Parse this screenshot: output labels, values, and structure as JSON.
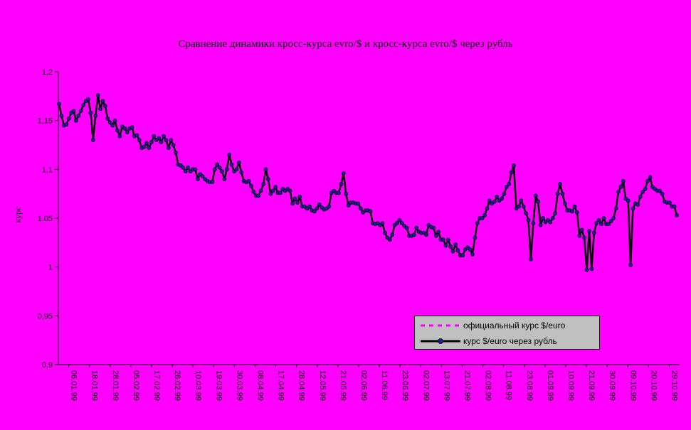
{
  "chart_data": {
    "type": "line",
    "title": "Сравнение динамики кросс-курса evro/$ и кросс-курса evro/$ через рубль",
    "ylabel": "курс",
    "xlabel": "",
    "ylim": [
      0.9,
      1.2
    ],
    "yticks": [
      "1,2",
      "1,15",
      "1,1",
      "1,05",
      "1",
      "0,95",
      "0,9"
    ],
    "xticks": [
      "06.01.99",
      "18.01.99",
      "28.01.99",
      "05.02.99",
      "17.02.99",
      "26.02.99",
      "10.03.99",
      "19.03.99",
      "30.03.99",
      "08.04.99",
      "17.04.99",
      "28.04.99",
      "12.05.99",
      "21.05.99",
      "02.06.99",
      "11.06.99",
      "23.06.99",
      "02.07.99",
      "13.07.99",
      "21.07.99",
      "02.08.99",
      "11.08.99",
      "23.08.99",
      "01.09.99",
      "10.09.99",
      "21.09.99",
      "30.09.99",
      "09.10.99",
      "20.10.99",
      "29.10.99"
    ],
    "grid": false,
    "legend_position": "bottom-right",
    "colors": {
      "official": "#ff00ff",
      "via_ruble": "#000000",
      "marker": "#1c1c8c"
    },
    "series": [
      {
        "name": "официальный курс $/euro",
        "style": "dashed",
        "values": [
          1.167,
          1.155,
          1.145,
          1.146,
          1.152,
          1.158,
          1.16,
          1.15,
          1.155,
          1.16,
          1.166,
          1.17,
          1.172,
          1.158,
          1.13,
          1.155,
          1.176,
          1.162,
          1.17,
          1.165,
          1.152,
          1.148,
          1.145,
          1.15,
          1.14,
          1.134,
          1.144,
          1.142,
          1.138,
          1.142,
          1.143,
          1.134,
          1.135,
          1.13,
          1.122,
          1.123,
          1.127,
          1.122,
          1.128,
          1.134,
          1.13,
          1.132,
          1.128,
          1.134,
          1.13,
          1.122,
          1.13,
          1.125,
          1.117,
          1.105,
          1.104,
          1.102,
          1.098,
          1.102,
          1.098,
          1.1,
          1.1,
          1.09,
          1.095,
          1.093,
          1.09,
          1.088,
          1.087,
          1.087,
          1.1,
          1.105,
          1.102,
          1.098,
          1.09,
          1.1,
          1.115,
          1.105,
          1.098,
          1.1,
          1.107,
          1.097,
          1.088,
          1.087,
          1.088,
          1.083,
          1.077,
          1.073,
          1.073,
          1.078,
          1.085,
          1.1,
          1.09,
          1.075,
          1.078,
          1.082,
          1.076,
          1.076,
          1.08,
          1.078,
          1.08,
          1.078,
          1.065,
          1.07,
          1.066,
          1.072,
          1.062,
          1.062,
          1.06,
          1.062,
          1.058,
          1.057,
          1.06,
          1.064,
          1.061,
          1.059,
          1.06,
          1.062,
          1.076,
          1.078,
          1.076,
          1.076,
          1.085,
          1.096,
          1.075,
          1.063,
          1.066,
          1.066,
          1.065,
          1.065,
          1.06,
          1.056,
          1.058,
          1.058,
          1.057,
          1.045,
          1.044,
          1.045,
          1.043,
          1.045,
          1.035,
          1.03,
          1.028,
          1.033,
          1.043,
          1.045,
          1.048,
          1.045,
          1.042,
          1.04,
          1.032,
          1.032,
          1.033,
          1.04,
          1.036,
          1.035,
          1.035,
          1.033,
          1.043,
          1.041,
          1.04,
          1.032,
          1.036,
          1.028,
          1.028,
          1.022,
          1.028,
          1.021,
          1.016,
          1.023,
          1.017,
          1.012,
          1.012,
          1.018,
          1.02,
          1.018,
          1.013,
          1.03,
          1.045,
          1.05,
          1.05,
          1.053,
          1.06,
          1.068,
          1.065,
          1.067,
          1.072,
          1.068,
          1.07,
          1.075,
          1.082,
          1.085,
          1.097,
          1.104,
          1.06,
          1.062,
          1.068,
          1.062,
          1.055,
          1.048,
          1.008,
          1.045,
          1.073,
          1.067,
          1.043,
          1.05,
          1.046,
          1.048,
          1.046,
          1.05,
          1.055,
          1.075,
          1.085,
          1.075,
          1.065,
          1.058,
          1.058,
          1.057,
          1.062,
          1.056,
          1.032,
          1.038,
          1.03,
          0.997,
          1.037,
          0.998,
          1.035,
          1.045,
          1.048,
          1.044,
          1.05,
          1.044,
          1.044,
          1.047,
          1.05,
          1.06,
          1.077,
          1.082,
          1.088,
          1.07,
          1.068,
          1.002,
          1.06,
          1.065,
          1.064,
          1.072,
          1.077,
          1.08,
          1.088,
          1.092,
          1.082,
          1.08,
          1.078,
          1.078,
          1.075,
          1.067,
          1.066,
          1.066,
          1.062,
          1.062,
          1.053
        ]
      },
      {
        "name": "курс $/euro через рубль",
        "style": "solid-markers",
        "values": [
          1.167,
          1.155,
          1.145,
          1.146,
          1.152,
          1.158,
          1.16,
          1.15,
          1.155,
          1.16,
          1.166,
          1.17,
          1.172,
          1.158,
          1.13,
          1.155,
          1.176,
          1.162,
          1.17,
          1.165,
          1.152,
          1.148,
          1.145,
          1.15,
          1.14,
          1.134,
          1.144,
          1.142,
          1.138,
          1.142,
          1.143,
          1.134,
          1.135,
          1.13,
          1.122,
          1.123,
          1.127,
          1.122,
          1.128,
          1.134,
          1.13,
          1.132,
          1.128,
          1.134,
          1.13,
          1.122,
          1.13,
          1.125,
          1.117,
          1.105,
          1.104,
          1.102,
          1.098,
          1.102,
          1.098,
          1.1,
          1.1,
          1.09,
          1.095,
          1.093,
          1.09,
          1.088,
          1.087,
          1.087,
          1.1,
          1.105,
          1.102,
          1.098,
          1.09,
          1.1,
          1.115,
          1.105,
          1.098,
          1.1,
          1.107,
          1.097,
          1.088,
          1.087,
          1.088,
          1.083,
          1.077,
          1.073,
          1.073,
          1.078,
          1.085,
          1.1,
          1.09,
          1.075,
          1.078,
          1.082,
          1.076,
          1.076,
          1.08,
          1.078,
          1.08,
          1.078,
          1.065,
          1.07,
          1.066,
          1.072,
          1.062,
          1.062,
          1.06,
          1.062,
          1.058,
          1.057,
          1.06,
          1.064,
          1.061,
          1.059,
          1.06,
          1.062,
          1.076,
          1.078,
          1.076,
          1.076,
          1.085,
          1.096,
          1.075,
          1.063,
          1.066,
          1.066,
          1.065,
          1.065,
          1.06,
          1.056,
          1.058,
          1.058,
          1.057,
          1.045,
          1.044,
          1.045,
          1.043,
          1.045,
          1.035,
          1.03,
          1.028,
          1.033,
          1.043,
          1.045,
          1.048,
          1.045,
          1.042,
          1.04,
          1.032,
          1.032,
          1.033,
          1.04,
          1.036,
          1.035,
          1.035,
          1.033,
          1.043,
          1.041,
          1.04,
          1.032,
          1.036,
          1.028,
          1.028,
          1.022,
          1.028,
          1.021,
          1.016,
          1.023,
          1.017,
          1.012,
          1.012,
          1.018,
          1.02,
          1.018,
          1.013,
          1.03,
          1.045,
          1.05,
          1.05,
          1.053,
          1.06,
          1.068,
          1.065,
          1.067,
          1.072,
          1.068,
          1.07,
          1.075,
          1.082,
          1.085,
          1.097,
          1.104,
          1.06,
          1.062,
          1.068,
          1.062,
          1.055,
          1.048,
          1.008,
          1.045,
          1.073,
          1.067,
          1.043,
          1.05,
          1.046,
          1.048,
          1.046,
          1.05,
          1.055,
          1.075,
          1.085,
          1.075,
          1.065,
          1.058,
          1.058,
          1.057,
          1.062,
          1.056,
          1.032,
          1.038,
          1.03,
          0.997,
          1.037,
          0.998,
          1.035,
          1.045,
          1.048,
          1.044,
          1.05,
          1.044,
          1.044,
          1.047,
          1.05,
          1.06,
          1.077,
          1.082,
          1.088,
          1.07,
          1.068,
          1.002,
          1.06,
          1.065,
          1.064,
          1.072,
          1.077,
          1.08,
          1.088,
          1.092,
          1.082,
          1.08,
          1.078,
          1.078,
          1.075,
          1.067,
          1.066,
          1.066,
          1.062,
          1.062,
          1.053
        ]
      }
    ]
  }
}
